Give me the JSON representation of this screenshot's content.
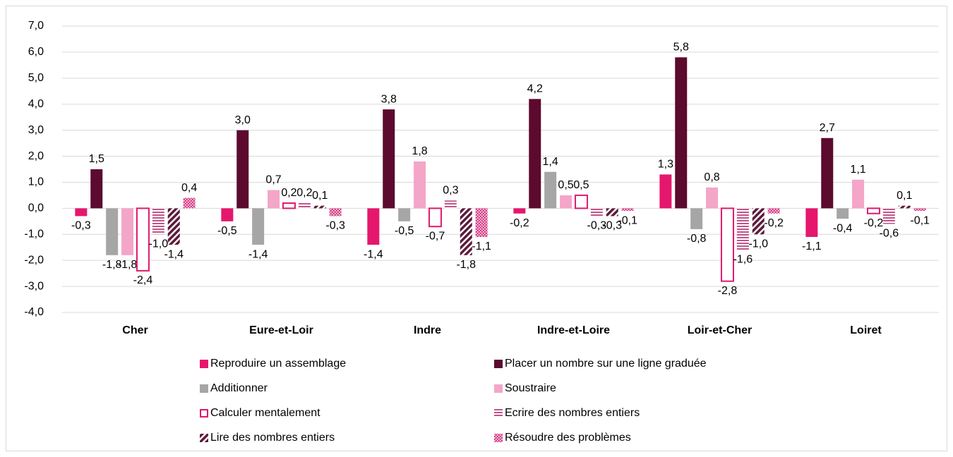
{
  "chart_data": {
    "type": "bar",
    "categories": [
      "Cher",
      "Eure-et-Loir",
      "Indre",
      "Indre-et-Loire",
      "Loir-et-Cher",
      "Loiret"
    ],
    "ylim": [
      -4,
      7
    ],
    "yticks": [
      {
        "value": -4,
        "label": "-4,0"
      },
      {
        "value": -3,
        "label": "-3,0"
      },
      {
        "value": -2,
        "label": "-2,0"
      },
      {
        "value": -1,
        "label": "-1,0"
      },
      {
        "value": 0,
        "label": "0,0"
      },
      {
        "value": 1,
        "label": "1,0"
      },
      {
        "value": 2,
        "label": "2,0"
      },
      {
        "value": 3,
        "label": "3,0"
      },
      {
        "value": 4,
        "label": "4,0"
      },
      {
        "value": 5,
        "label": "5,0"
      },
      {
        "value": 6,
        "label": "6,0"
      },
      {
        "value": 7,
        "label": "7,0"
      }
    ],
    "grid": true,
    "legend": "bottom",
    "series": [
      {
        "name": "Reproduire un assemblage",
        "color": "#e5176d",
        "pattern": "solid",
        "values": [
          -0.3,
          -0.5,
          -1.4,
          -0.2,
          1.3,
          -1.1
        ],
        "value_labels": [
          "-0,3",
          "-0,5",
          "-1,4",
          "-0,2",
          "1,3",
          "-1,1"
        ]
      },
      {
        "name": "Placer un nombre sur une ligne graduée",
        "color": "#5c0a2e",
        "pattern": "solid",
        "values": [
          1.5,
          3.0,
          3.8,
          4.2,
          5.8,
          2.7
        ],
        "value_labels": [
          "1,5",
          "3,0",
          "3,8",
          "4,2",
          "5,8",
          "2,7"
        ]
      },
      {
        "name": "Additionner",
        "color": "#a6a6a6",
        "pattern": "solid",
        "values": [
          -1.8,
          -1.4,
          -0.5,
          1.4,
          -0.8,
          -0.4
        ],
        "value_labels": [
          "-1,8",
          "-1,4",
          "-0,5",
          "1,4",
          "-0,8",
          "-0,4"
        ]
      },
      {
        "name": "Soustraire",
        "color": "#f4a6c8",
        "pattern": "solid",
        "values": [
          -1.8,
          0.7,
          1.8,
          0.5,
          0.8,
          1.1
        ],
        "value_labels": [
          "-1,8",
          "0,7",
          "1,8",
          "0,5",
          "0,8",
          "1,1"
        ]
      },
      {
        "name": "Calculer mentalement",
        "color": "#e0196f",
        "pattern": "outline",
        "values": [
          -2.4,
          0.2,
          -0.7,
          0.5,
          -2.8,
          -0.2
        ],
        "value_labels": [
          "-2,4",
          "0,2",
          "-0,7",
          "0,5",
          "-2,8",
          "-0,2"
        ]
      },
      {
        "name": "Ecrire des nombres entiers",
        "color": "#c2548a",
        "pattern": "horizontal",
        "values": [
          -1.0,
          0.2,
          0.3,
          -0.3,
          -1.6,
          -0.6
        ],
        "value_labels": [
          "-1,0",
          "0,2",
          "0,3",
          "-0,3",
          "-1,6",
          "-0,6"
        ]
      },
      {
        "name": "Lire des nombres entiers",
        "color": "#5c1a3a",
        "pattern": "diagonal",
        "values": [
          -1.4,
          0.1,
          -1.8,
          -0.3,
          -1.0,
          0.1
        ],
        "value_labels": [
          "-1,4",
          "0,1",
          "-1,8",
          "-0,3",
          "-1,0",
          "0,1"
        ]
      },
      {
        "name": "Résoudre des problèmes",
        "color": "#d9458a",
        "pattern": "checker",
        "values": [
          0.4,
          -0.3,
          -1.1,
          -0.1,
          -0.2,
          -0.1
        ],
        "value_labels": [
          "0,4",
          "-0,3",
          "-1,1",
          "-0,1",
          "-0,2",
          "-0,1"
        ]
      }
    ]
  }
}
